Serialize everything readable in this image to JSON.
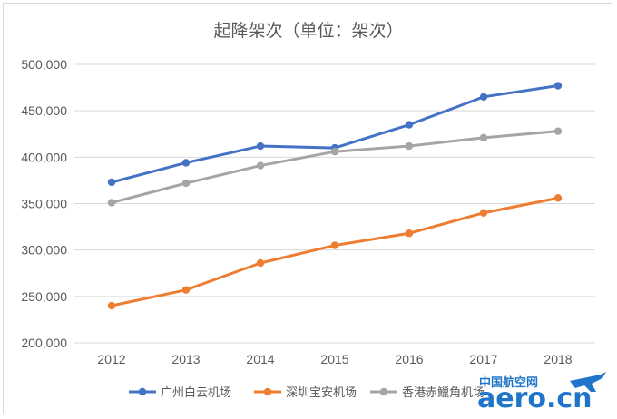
{
  "chart_data": {
    "type": "line",
    "title": "起降架次（单位：架次）",
    "categories": [
      "2012",
      "2013",
      "2014",
      "2015",
      "2016",
      "2017",
      "2018"
    ],
    "ylim": [
      200000,
      500000
    ],
    "yticks": [
      200000,
      250000,
      300000,
      350000,
      400000,
      450000,
      500000
    ],
    "ytick_labels": [
      "200,000",
      "250,000",
      "300,000",
      "350,000",
      "400,000",
      "450,000",
      "500,000"
    ],
    "grid": true,
    "legend_position": "bottom",
    "series": [
      {
        "name": "广州白云机场",
        "color": "#4472c4",
        "values": [
          373000,
          394000,
          412000,
          410000,
          435000,
          465000,
          477000
        ]
      },
      {
        "name": "深圳宝安机场",
        "color": "#ed7d31",
        "values": [
          240000,
          257000,
          286000,
          305000,
          318000,
          340000,
          356000
        ]
      },
      {
        "name": "香港赤鱲角机场",
        "color": "#a5a5a5",
        "values": [
          351000,
          372000,
          391000,
          406000,
          412000,
          421000,
          428000
        ]
      }
    ]
  },
  "watermark": {
    "top_text": "中国航空网",
    "main_text": "aero.cn",
    "color": "#1f75c9"
  }
}
